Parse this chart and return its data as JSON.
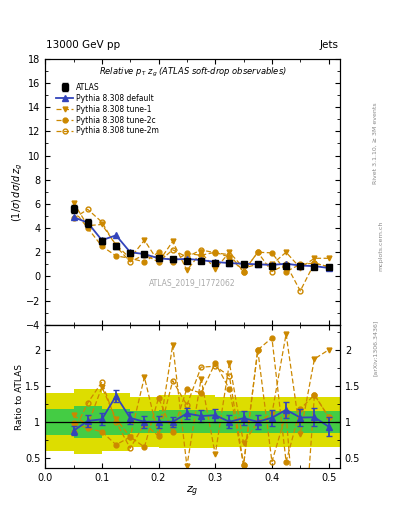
{
  "title_top": "13000 GeV pp",
  "title_top_right": "Jets",
  "watermark": "ATLAS_2019_I1772062",
  "ylim_main": [
    -4,
    18
  ],
  "ylim_ratio": [
    0.35,
    2.35
  ],
  "zg": [
    0.05,
    0.075,
    0.1,
    0.125,
    0.15,
    0.175,
    0.2,
    0.225,
    0.25,
    0.275,
    0.3,
    0.325,
    0.35,
    0.375,
    0.4,
    0.425,
    0.45,
    0.475,
    0.5
  ],
  "atlas_y": [
    5.6,
    4.4,
    2.9,
    2.5,
    1.9,
    1.85,
    1.5,
    1.4,
    1.3,
    1.25,
    1.1,
    1.1,
    1.0,
    1.0,
    0.9,
    0.9,
    0.85,
    0.8,
    0.75
  ],
  "atlas_yerr": [
    0.35,
    0.35,
    0.25,
    0.2,
    0.15,
    0.15,
    0.12,
    0.1,
    0.1,
    0.1,
    0.1,
    0.1,
    0.1,
    0.1,
    0.1,
    0.1,
    0.1,
    0.1,
    0.1
  ],
  "py_default_y": [
    4.9,
    4.45,
    3.0,
    3.4,
    2.0,
    1.85,
    1.5,
    1.4,
    1.45,
    1.35,
    1.2,
    1.1,
    1.05,
    1.0,
    0.95,
    1.05,
    0.9,
    0.85,
    0.7
  ],
  "py_tune1_y": [
    6.1,
    4.2,
    4.3,
    2.6,
    1.5,
    3.0,
    1.2,
    2.9,
    0.5,
    2.0,
    0.6,
    2.0,
    0.7,
    1.0,
    1.0,
    2.0,
    0.7,
    1.5,
    1.5
  ],
  "py_tune2c_y": [
    5.5,
    4.0,
    2.5,
    1.7,
    1.5,
    1.2,
    2.0,
    1.2,
    1.9,
    1.75,
    2.0,
    1.6,
    0.4,
    2.0,
    1.95,
    0.4,
    1.0,
    1.1,
    0.8
  ],
  "py_tune2m_y": [
    4.8,
    5.55,
    4.5,
    2.5,
    1.2,
    1.8,
    1.2,
    2.2,
    1.6,
    2.2,
    1.95,
    1.8,
    0.4,
    2.0,
    0.4,
    1.0,
    -1.2,
    1.1,
    0.8
  ],
  "color_blue": "#3344bb",
  "color_orange": "#cc8800",
  "color_green": "#44cc44",
  "color_yellow": "#dddd00",
  "band_edges": [
    0.0,
    0.05,
    0.1,
    0.15,
    0.2,
    0.25,
    0.3,
    0.35,
    0.4,
    0.45,
    0.5,
    0.52
  ],
  "green_lo": [
    0.82,
    0.78,
    0.82,
    0.85,
    0.84,
    0.84,
    0.85,
    0.85,
    0.85,
    0.85,
    0.85,
    0.85
  ],
  "green_hi": [
    1.18,
    1.22,
    1.18,
    1.15,
    1.16,
    1.16,
    1.15,
    1.15,
    1.15,
    1.15,
    1.15,
    1.15
  ],
  "yellow_lo": [
    0.6,
    0.55,
    0.6,
    0.65,
    0.63,
    0.63,
    0.65,
    0.65,
    0.65,
    0.65,
    0.65,
    0.65
  ],
  "yellow_hi": [
    1.4,
    1.45,
    1.4,
    1.35,
    1.37,
    1.37,
    1.35,
    1.35,
    1.35,
    1.35,
    1.35,
    1.35
  ]
}
